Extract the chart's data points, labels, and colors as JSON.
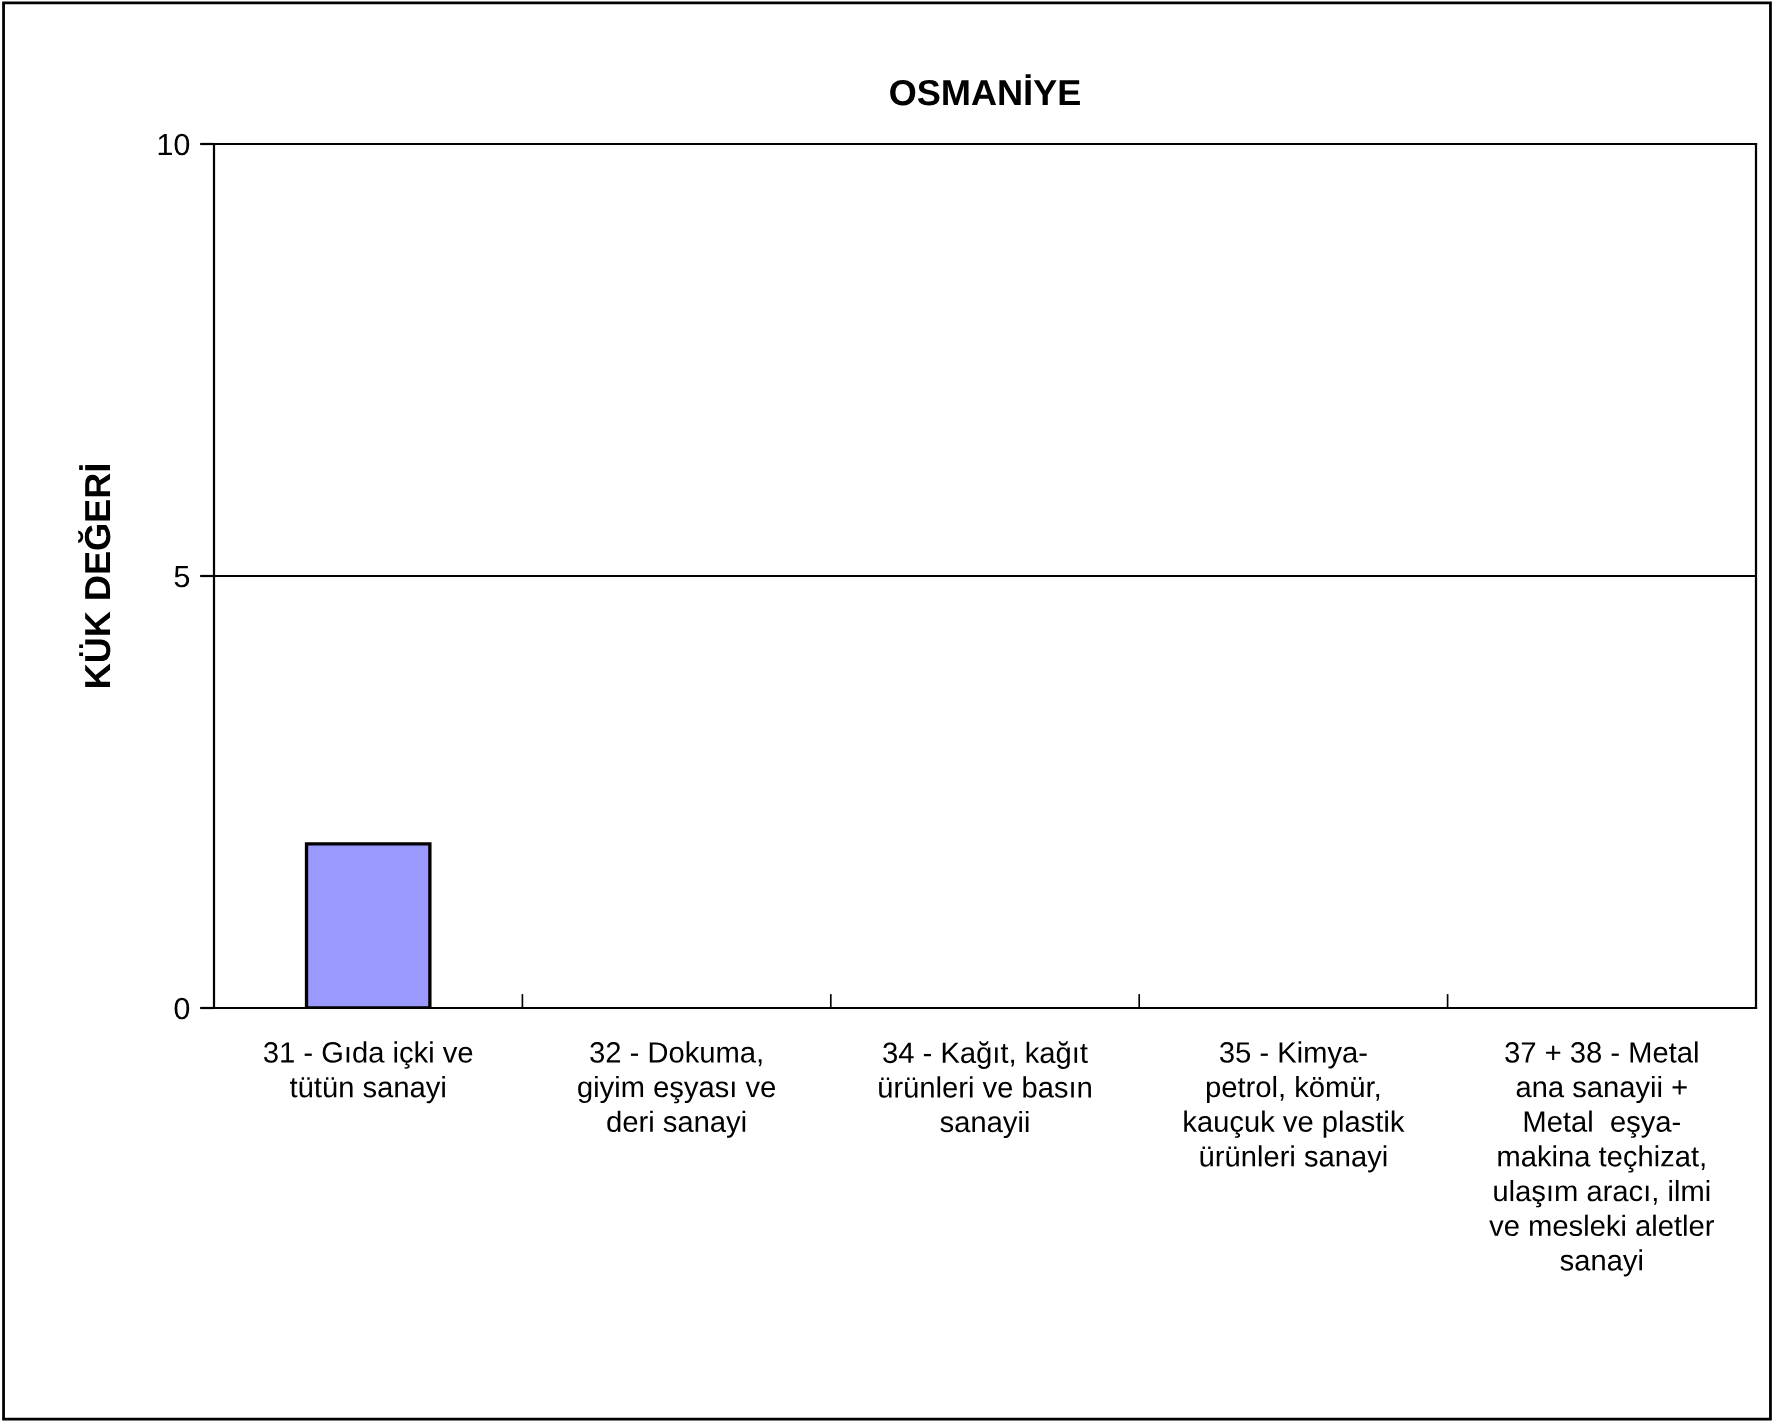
{
  "chart_data": {
    "type": "bar",
    "title": "OSMANİYE",
    "ylabel": "KÜK DEĞERİ",
    "categories": [
      "31 - Gıda içki ve\ntütün sanayi",
      "32 - Dokuma,\ngiyim eşyası ve\nderi sanayi",
      "34 - Kağıt, kağıt\nürünleri ve basın\nsanayii",
      "35 - Kimya-\npetrol, kömür,\nkauçuk ve plastik\nürünleri sanayi",
      "37 + 38 - Metal\nana sanayii +\nMetal  eşya-\nmakina teçhizat,\nulaşım aracı, ilmi\nve mesleki aletler\nsanayi"
    ],
    "values": [
      1.9,
      null,
      null,
      null,
      null
    ],
    "color": "#9999ff",
    "ylim": [
      0,
      10
    ],
    "yticks": [
      0,
      5,
      10
    ],
    "grid": "y"
  }
}
